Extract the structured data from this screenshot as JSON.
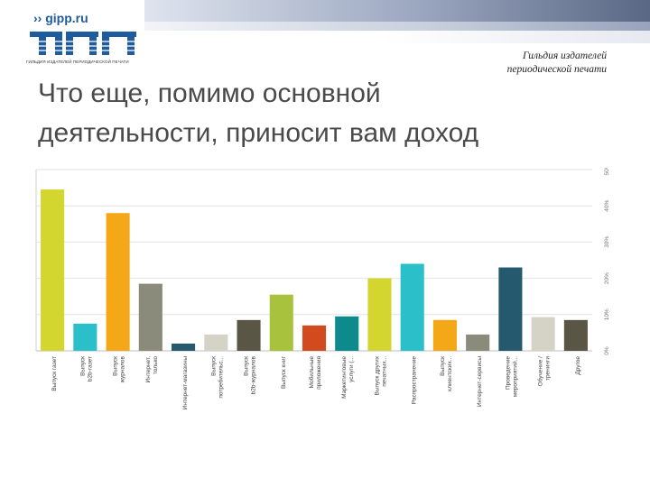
{
  "header": {
    "logo_text": "›› gipp.ru",
    "logo_caption": "ГИЛЬДИЯ ИЗДАТЕЛЕЙ ПЕРИОДИЧЕСКОЙ ПЕЧАТИ",
    "guild_line1": "Гильдия издателей",
    "guild_line2": "периодической печати"
  },
  "slide": {
    "title_line1": "Что еще, помимо основной",
    "title_line2": "деятельности, приносит вам доход"
  },
  "colors": {
    "logo_blue": "#1f5c9e"
  },
  "chart_data": {
    "type": "bar",
    "title": "",
    "xlabel": "",
    "ylabel": "",
    "ylim": [
      0,
      50
    ],
    "y_tick_values": [
      0,
      10,
      20,
      30,
      40,
      50
    ],
    "y_tick_labels": [
      "0%",
      "10%",
      "20%",
      "30%",
      "40%",
      "50%"
    ],
    "y_axis_side": "right",
    "grid": true,
    "legend": "none",
    "categories": [
      "Выпуск газет",
      "Выпуск b2b-газет",
      "Выпуск журналов",
      "Интернет, только сайты...",
      "Интернет-магазины",
      "Выпуск потребительс...",
      "Выпуск b2b-журналов",
      "Выпуск книг",
      "Мобильные приложения",
      "Маркетинговые услуги (...",
      "Выпуск других печатных...",
      "Распространение",
      "Выпуск клиентских...",
      "Интернет-сервисы",
      "Проведение мероприятий...",
      "Обучение / тренинги (не...",
      "Другое"
    ],
    "values": [
      44.5,
      7.5,
      38,
      18.5,
      2,
      4.5,
      8.5,
      15.5,
      7,
      9.5,
      20,
      24,
      8.5,
      4.5,
      23,
      9.3,
      8.5
    ],
    "bar_colors": [
      "#d2d62e",
      "#2bbfc9",
      "#f5a817",
      "#8b8b7c",
      "#255a6e",
      "#d5d3c5",
      "#5a5645",
      "#a9c23e",
      "#d24b1f",
      "#0c8a8c",
      "#d2d62e",
      "#2bbfc9",
      "#f5a817",
      "#8b8b7c",
      "#255a6e",
      "#d5d3c5",
      "#5a5645"
    ]
  }
}
